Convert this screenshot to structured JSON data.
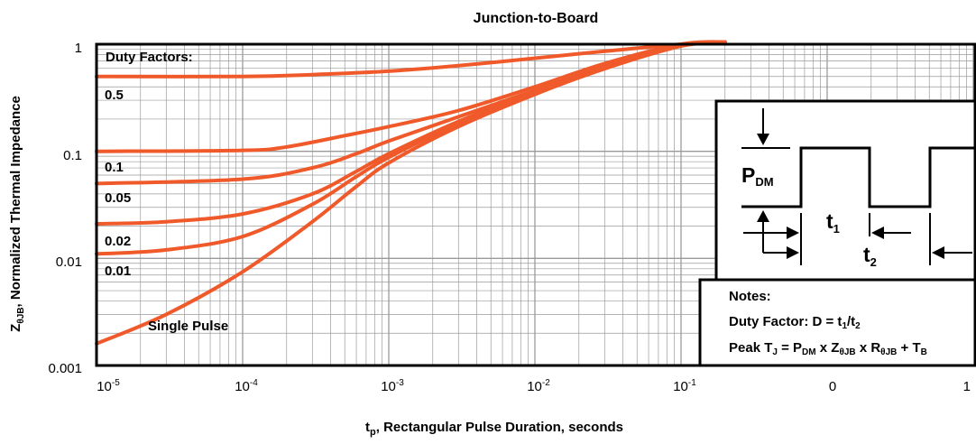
{
  "chart_data": {
    "type": "line",
    "title": "Junction-to-Board",
    "xlabel": "t",
    "xlabel_sub": "p",
    "xlabel_rest": ", Rectangular Pulse Duration, seconds",
    "ylabel": "Z",
    "ylabel_sub": "θJB",
    "ylabel_rest": ", Normalized Thermal Impedance",
    "x_scale": "log",
    "y_scale": "log",
    "xlim": [
      1e-05,
      100
    ],
    "ylim": [
      0.001,
      1
    ],
    "grid": true,
    "x_ticks": [
      {
        "base": "10",
        "exp": "-5"
      },
      {
        "base": "10",
        "exp": "-4"
      },
      {
        "base": "10",
        "exp": "-3"
      },
      {
        "base": "10",
        "exp": "-2"
      },
      {
        "base": "10",
        "exp": "-1"
      },
      {
        "base": "0",
        "exp": ""
      },
      {
        "base": "1",
        "exp": ""
      }
    ],
    "y_ticks": [
      "1",
      "0.1",
      "0.01",
      "0.001"
    ],
    "legend_title": "Duty Factors:",
    "series": [
      {
        "name": "0.5",
        "x": [
          1e-05,
          0.0001,
          0.0003,
          0.001,
          0.003,
          0.01,
          0.03,
          0.1,
          0.2
        ],
        "y": [
          0.5,
          0.5,
          0.52,
          0.56,
          0.63,
          0.74,
          0.86,
          1.0,
          1.05
        ]
      },
      {
        "name": "0.1",
        "x": [
          1e-05,
          0.0001,
          0.0002,
          0.0005,
          0.001,
          0.003,
          0.01,
          0.03,
          0.1,
          0.2
        ],
        "y": [
          0.1,
          0.102,
          0.11,
          0.14,
          0.17,
          0.24,
          0.4,
          0.66,
          1.0,
          1.05
        ]
      },
      {
        "name": "0.05",
        "x": [
          1e-05,
          0.0001,
          0.0003,
          0.0006,
          0.001,
          0.003,
          0.01,
          0.03,
          0.1,
          0.2
        ],
        "y": [
          0.05,
          0.055,
          0.07,
          0.095,
          0.125,
          0.21,
          0.37,
          0.62,
          0.98,
          1.05
        ]
      },
      {
        "name": "0.02",
        "x": [
          1e-05,
          3e-05,
          0.0001,
          0.0003,
          0.0006,
          0.001,
          0.003,
          0.01,
          0.03,
          0.1,
          0.2
        ],
        "y": [
          0.021,
          0.022,
          0.026,
          0.04,
          0.065,
          0.095,
          0.19,
          0.36,
          0.61,
          0.97,
          1.05
        ]
      },
      {
        "name": "0.01",
        "x": [
          1e-05,
          3e-05,
          0.0001,
          0.0003,
          0.0006,
          0.001,
          0.003,
          0.01,
          0.03,
          0.1,
          0.2
        ],
        "y": [
          0.011,
          0.012,
          0.016,
          0.032,
          0.058,
          0.088,
          0.18,
          0.35,
          0.6,
          0.97,
          1.05
        ]
      },
      {
        "name": "Single Pulse",
        "x": [
          1e-05,
          3e-05,
          0.0001,
          0.0003,
          0.0006,
          0.001,
          0.003,
          0.01,
          0.03,
          0.1,
          0.2
        ],
        "y": [
          0.0016,
          0.003,
          0.0075,
          0.022,
          0.047,
          0.078,
          0.17,
          0.34,
          0.59,
          0.96,
          1.05
        ]
      }
    ],
    "series_color": "#f05a2b",
    "series_labels": [
      "0.5",
      "0.1",
      "0.05",
      "0.02",
      "0.01",
      "Single Pulse"
    ],
    "inset": {
      "pdm_main": "P",
      "pdm_sub": "DM",
      "t1_main": "t",
      "t1_sub": "1",
      "t2_main": "t",
      "t2_sub": "2"
    },
    "notes": {
      "title": "Notes:",
      "line1_a": "Duty Factor: D = t",
      "line1_s1": "1",
      "line1_b": "/t",
      "line1_s2": "2",
      "line2_a": "Peak T",
      "line2_s1": "J",
      "line2_b": " = P",
      "line2_s2": "DM",
      "line2_c": " x Z",
      "line2_s3": "θJB",
      "line2_d": " x R",
      "line2_s4": "θJB",
      "line2_e": " + T",
      "line2_s5": "B"
    }
  }
}
